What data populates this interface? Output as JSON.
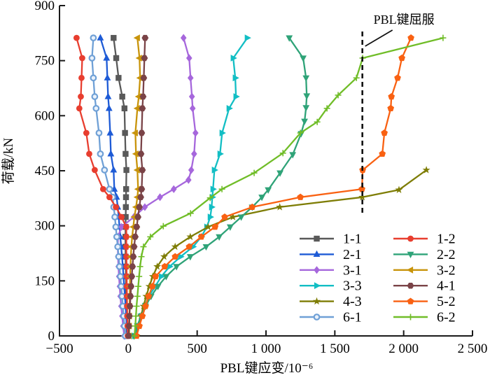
{
  "chart_data": {
    "type": "line",
    "title": "",
    "xlabel": "PBL键应变/10⁻⁶",
    "ylabel": "荷载/kN",
    "xlim": [
      -500,
      2500
    ],
    "ylim": [
      0,
      900
    ],
    "grid": false,
    "x_ticks": [
      -500,
      0,
      500,
      1000,
      1500,
      2000,
      2500
    ],
    "x_tick_labels": [
      "−500",
      "0",
      "500",
      "1 000",
      "1 500",
      "2 000",
      "2 500"
    ],
    "y_ticks": [
      0,
      150,
      300,
      450,
      600,
      750,
      900
    ],
    "y_tick_labels": [
      "0",
      "150",
      "300",
      "450",
      "600",
      "750",
      "900"
    ],
    "annotation": {
      "text": "PBL键屈服",
      "dashed_line_x": 1700
    },
    "legend": {
      "position": "inside-lower-right",
      "columns": [
        [
          "1-1",
          "2-1",
          "3-1",
          "3-3",
          "4-3",
          "6-1"
        ],
        [
          "1-2",
          "2-2",
          "3-2",
          "4-1",
          "5-2",
          "6-2"
        ]
      ]
    },
    "series": [
      {
        "name": "1-1",
        "color": "#595959",
        "marker": "square",
        "points": [
          [
            -12,
            0
          ],
          [
            -13,
            27
          ],
          [
            -14,
            54
          ],
          [
            -15,
            81
          ],
          [
            -16,
            108
          ],
          [
            -17,
            135
          ],
          [
            -18,
            162
          ],
          [
            -19,
            189
          ],
          [
            -20,
            216
          ],
          [
            -21,
            243
          ],
          [
            -21,
            270
          ],
          [
            -20,
            297
          ],
          [
            -19,
            324
          ],
          [
            -18,
            351
          ],
          [
            -17,
            378
          ],
          [
            -16,
            400
          ],
          [
            -14,
            452
          ],
          [
            -20,
            496
          ],
          [
            -24,
            553
          ],
          [
            -28,
            620
          ],
          [
            -44,
            652
          ],
          [
            -71,
            703
          ],
          [
            -88,
            757
          ],
          [
            -107,
            812
          ]
        ]
      },
      {
        "name": "2-1",
        "color": "#1E5BD6",
        "marker": "triangle-up",
        "points": [
          [
            -8,
            0
          ],
          [
            -12,
            27
          ],
          [
            -16,
            54
          ],
          [
            -20,
            81
          ],
          [
            -25,
            108
          ],
          [
            -30,
            135
          ],
          [
            -35,
            162
          ],
          [
            -40,
            189
          ],
          [
            -46,
            216
          ],
          [
            -52,
            243
          ],
          [
            -58,
            270
          ],
          [
            -64,
            297
          ],
          [
            -70,
            324
          ],
          [
            -77,
            351
          ],
          [
            -85,
            378
          ],
          [
            -102,
            400
          ],
          [
            -107,
            452
          ],
          [
            -127,
            496
          ],
          [
            -132,
            553
          ],
          [
            -140,
            620
          ],
          [
            -147,
            652
          ],
          [
            -152,
            703
          ],
          [
            -158,
            757
          ],
          [
            -203,
            812
          ]
        ]
      },
      {
        "name": "3-1",
        "color": "#A667DC",
        "marker": "diamond",
        "points": [
          [
            -30,
            0
          ],
          [
            -38,
            27
          ],
          [
            -45,
            54
          ],
          [
            -52,
            81
          ],
          [
            -58,
            108
          ],
          [
            -63,
            135
          ],
          [
            -68,
            162
          ],
          [
            -72,
            189
          ],
          [
            -75,
            216
          ],
          [
            -77,
            243
          ],
          [
            -75,
            270
          ],
          [
            -50,
            297
          ],
          [
            40,
            324
          ],
          [
            120,
            351
          ],
          [
            230,
            378
          ],
          [
            330,
            400
          ],
          [
            437,
            425
          ],
          [
            457,
            452
          ],
          [
            478,
            496
          ],
          [
            488,
            553
          ],
          [
            467,
            620
          ],
          [
            462,
            652
          ],
          [
            452,
            703
          ],
          [
            442,
            757
          ],
          [
            401,
            812
          ]
        ]
      },
      {
        "name": "3-3",
        "color": "#12BEC4",
        "marker": "triangle-right",
        "points": [
          [
            45,
            0
          ],
          [
            75,
            27
          ],
          [
            97,
            54
          ],
          [
            120,
            81
          ],
          [
            150,
            108
          ],
          [
            195,
            135
          ],
          [
            240,
            162
          ],
          [
            300,
            189
          ],
          [
            380,
            216
          ],
          [
            470,
            243
          ],
          [
            530,
            270
          ],
          [
            570,
            297
          ],
          [
            595,
            324
          ],
          [
            605,
            351
          ],
          [
            610,
            378
          ],
          [
            615,
            400
          ],
          [
            625,
            452
          ],
          [
            666,
            496
          ],
          [
            681,
            553
          ],
          [
            732,
            620
          ],
          [
            782,
            652
          ],
          [
            777,
            703
          ],
          [
            762,
            757
          ],
          [
            864,
            812
          ]
        ]
      },
      {
        "name": "4-3",
        "color": "#7E7D05",
        "marker": "star",
        "points": [
          [
            60,
            0
          ],
          [
            75,
            27
          ],
          [
            92,
            54
          ],
          [
            110,
            81
          ],
          [
            130,
            108
          ],
          [
            152,
            135
          ],
          [
            178,
            162
          ],
          [
            210,
            189
          ],
          [
            260,
            216
          ],
          [
            340,
            243
          ],
          [
            450,
            270
          ],
          [
            580,
            297
          ],
          [
            760,
            324
          ],
          [
            1100,
            351
          ],
          [
            1700,
            378
          ],
          [
            1966,
            398
          ],
          [
            2165,
            452
          ]
        ]
      },
      {
        "name": "6-1",
        "color": "#6FA0D6",
        "marker": "circle-open",
        "points": [
          [
            -22,
            0
          ],
          [
            -28,
            27
          ],
          [
            -34,
            54
          ],
          [
            -40,
            81
          ],
          [
            -46,
            108
          ],
          [
            -52,
            135
          ],
          [
            -58,
            162
          ],
          [
            -64,
            189
          ],
          [
            -70,
            216
          ],
          [
            -77,
            243
          ],
          [
            -84,
            270
          ],
          [
            -91,
            297
          ],
          [
            -98,
            324
          ],
          [
            -106,
            351
          ],
          [
            -114,
            378
          ],
          [
            -137,
            400
          ],
          [
            -173,
            452
          ],
          [
            -203,
            496
          ],
          [
            -213,
            553
          ],
          [
            -234,
            620
          ],
          [
            -244,
            652
          ],
          [
            -254,
            703
          ],
          [
            -264,
            757
          ],
          [
            -254,
            812
          ]
        ]
      },
      {
        "name": "1-2",
        "color": "#E83E2F",
        "marker": "circle",
        "points": [
          [
            -4,
            0
          ],
          [
            -6,
            27
          ],
          [
            -8,
            54
          ],
          [
            -9,
            81
          ],
          [
            -10,
            108
          ],
          [
            -11,
            135
          ],
          [
            -12,
            162
          ],
          [
            -13,
            189
          ],
          [
            -14,
            216
          ],
          [
            -15,
            243
          ],
          [
            -14,
            270
          ],
          [
            -15,
            297
          ],
          [
            -50,
            324
          ],
          [
            -90,
            351
          ],
          [
            -137,
            378
          ],
          [
            -183,
            400
          ],
          [
            -244,
            452
          ],
          [
            -284,
            496
          ],
          [
            -305,
            553
          ],
          [
            -356,
            620
          ],
          [
            -345,
            652
          ],
          [
            -340,
            703
          ],
          [
            -335,
            757
          ],
          [
            -376,
            812
          ]
        ]
      },
      {
        "name": "2-2",
        "color": "#2FA378",
        "marker": "triangle-down",
        "points": [
          [
            40,
            0
          ],
          [
            65,
            27
          ],
          [
            92,
            54
          ],
          [
            125,
            81
          ],
          [
            165,
            108
          ],
          [
            215,
            135
          ],
          [
            275,
            162
          ],
          [
            350,
            189
          ],
          [
            450,
            216
          ],
          [
            565,
            243
          ],
          [
            660,
            270
          ],
          [
            740,
            297
          ],
          [
            820,
            324
          ],
          [
            900,
            351
          ],
          [
            970,
            378
          ],
          [
            1016,
            398
          ],
          [
            1102,
            444
          ],
          [
            1194,
            494
          ],
          [
            1255,
            551
          ],
          [
            1280,
            585
          ],
          [
            1291,
            622
          ],
          [
            1296,
            654
          ],
          [
            1291,
            703
          ],
          [
            1270,
            757
          ],
          [
            1169,
            812
          ]
        ]
      },
      {
        "name": "3-2",
        "color": "#C8940B",
        "marker": "triangle-left",
        "points": [
          [
            6,
            0
          ],
          [
            7,
            27
          ],
          [
            8,
            54
          ],
          [
            9,
            81
          ],
          [
            10,
            108
          ],
          [
            11,
            135
          ],
          [
            13,
            162
          ],
          [
            15,
            189
          ],
          [
            18,
            216
          ],
          [
            22,
            243
          ],
          [
            28,
            270
          ],
          [
            36,
            297
          ],
          [
            44,
            324
          ],
          [
            56,
            351
          ],
          [
            66,
            378
          ],
          [
            71,
            400
          ],
          [
            66,
            452
          ],
          [
            56,
            496
          ],
          [
            51,
            553
          ],
          [
            66,
            620
          ],
          [
            76,
            652
          ],
          [
            86,
            703
          ],
          [
            81,
            757
          ],
          [
            66,
            812
          ]
        ]
      },
      {
        "name": "4-1",
        "color": "#7A4347",
        "marker": "hexagon",
        "points": [
          [
            2,
            0
          ],
          [
            5,
            27
          ],
          [
            8,
            54
          ],
          [
            12,
            81
          ],
          [
            16,
            108
          ],
          [
            20,
            135
          ],
          [
            25,
            162
          ],
          [
            30,
            189
          ],
          [
            36,
            216
          ],
          [
            42,
            243
          ],
          [
            50,
            270
          ],
          [
            61,
            297
          ],
          [
            70,
            324
          ],
          [
            80,
            351
          ],
          [
            90,
            378
          ],
          [
            97,
            400
          ],
          [
            102,
            452
          ],
          [
            92,
            496
          ],
          [
            97,
            553
          ],
          [
            102,
            620
          ],
          [
            107,
            652
          ],
          [
            112,
            703
          ],
          [
            117,
            757
          ],
          [
            122,
            812
          ]
        ]
      },
      {
        "name": "5-2",
        "color": "#F96112",
        "marker": "pentagon",
        "points": [
          [
            60,
            0
          ],
          [
            80,
            27
          ],
          [
            102,
            54
          ],
          [
            125,
            81
          ],
          [
            147,
            108
          ],
          [
            175,
            135
          ],
          [
            198,
            162
          ],
          [
            264,
            189
          ],
          [
            340,
            216
          ],
          [
            442,
            243
          ],
          [
            530,
            270
          ],
          [
            630,
            297
          ],
          [
            700,
            324
          ],
          [
            900,
            351
          ],
          [
            1250,
            378
          ],
          [
            1697,
            400
          ],
          [
            1702,
            452
          ],
          [
            1845,
            496
          ],
          [
            1860,
            553
          ],
          [
            1906,
            620
          ],
          [
            1911,
            652
          ],
          [
            1956,
            703
          ],
          [
            1987,
            757
          ],
          [
            2053,
            812
          ]
        ]
      },
      {
        "name": "6-2",
        "color": "#70BD28",
        "marker": "plus",
        "points": [
          [
            45,
            0
          ],
          [
            50,
            27
          ],
          [
            55,
            54
          ],
          [
            60,
            81
          ],
          [
            66,
            108
          ],
          [
            72,
            135
          ],
          [
            78,
            162
          ],
          [
            85,
            189
          ],
          [
            95,
            216
          ],
          [
            110,
            243
          ],
          [
            160,
            270
          ],
          [
            254,
            299
          ],
          [
            452,
            334
          ],
          [
            594,
            376
          ],
          [
            680,
            400
          ],
          [
            914,
            444
          ],
          [
            1123,
            498
          ],
          [
            1250,
            553
          ],
          [
            1372,
            583
          ],
          [
            1443,
            620
          ],
          [
            1524,
            656
          ],
          [
            1657,
            703
          ],
          [
            1702,
            757
          ],
          [
            2286,
            812
          ]
        ]
      }
    ]
  }
}
